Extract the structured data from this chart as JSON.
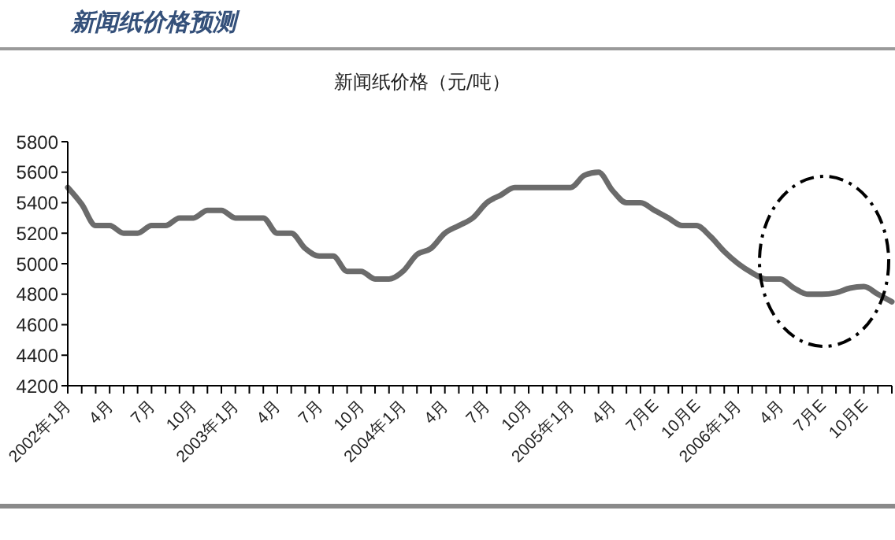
{
  "chart_data": {
    "type": "line",
    "title": "新闻纸价格预测",
    "subtitle": "新闻纸价格（元/吨）",
    "categories": [
      "2002年1月",
      null,
      null,
      "4月",
      null,
      null,
      "7月",
      null,
      null,
      "10月",
      null,
      null,
      "2003年1月",
      null,
      null,
      "4月",
      null,
      null,
      "7月",
      null,
      null,
      "10月",
      null,
      null,
      "2004年1月",
      null,
      null,
      "4月",
      null,
      null,
      "7月",
      null,
      null,
      "10月",
      null,
      null,
      "2005年1月",
      null,
      null,
      "4月",
      null,
      null,
      "7月E",
      null,
      null,
      "10月E",
      null,
      null,
      "2006年1月",
      null,
      null,
      "4月",
      null,
      null,
      "7月E",
      null,
      null,
      "10月E",
      null,
      null
    ],
    "series": [
      {
        "color": "#6b6b6b",
        "values": [
          5500,
          5390,
          5250,
          5250,
          5200,
          5200,
          5250,
          5250,
          5300,
          5300,
          5350,
          5350,
          5300,
          5300,
          5300,
          5200,
          5200,
          5100,
          5050,
          5050,
          4950,
          4950,
          4900,
          4900,
          4950,
          5060,
          5100,
          5200,
          5250,
          5300,
          5400,
          5450,
          5500,
          5500,
          5500,
          5500,
          5500,
          5580,
          5600,
          5480,
          5400,
          5400,
          5350,
          5300,
          5250,
          5250,
          5180,
          5080,
          5000,
          4940,
          4900,
          4900,
          4840,
          4800,
          4800,
          4810,
          4840,
          4850,
          4800,
          4750
        ]
      }
    ],
    "ylim": [
      4200,
      5800
    ],
    "yticks": [
      4200,
      4400,
      4600,
      4800,
      5000,
      5200,
      5400,
      5600,
      5800
    ],
    "grid": false,
    "legend": false,
    "marker": "none",
    "line_style": "solid"
  }
}
